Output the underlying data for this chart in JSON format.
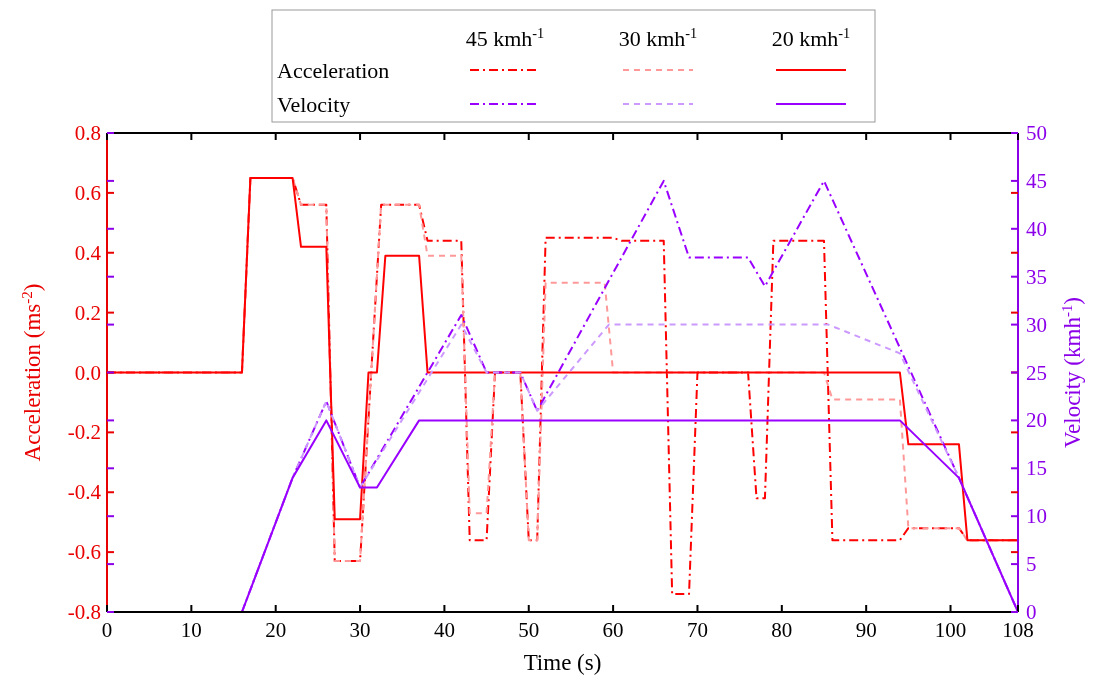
{
  "chart_data": {
    "type": "line",
    "xlabel": "Time (s)",
    "ylabel": "Acceleration (ms$^{-2}$)",
    "y2label": "Velocity (kmh$^{-1}$)",
    "xlim": [
      0,
      108
    ],
    "xticks": [
      0,
      10,
      20,
      30,
      40,
      50,
      60,
      70,
      80,
      90,
      100,
      108
    ],
    "ylim": [
      -0.8,
      0.8
    ],
    "yticks": [
      -0.8,
      -0.6,
      -0.4,
      -0.2,
      {
        "value": 0,
        "label": "0.0"
      },
      0.2,
      0.4,
      0.6,
      0.8
    ],
    "y2lim": [
      0,
      50
    ],
    "y2ticks": [
      0,
      5,
      10,
      15,
      20,
      25,
      30,
      35,
      40,
      45,
      50
    ],
    "grid": false,
    "annotations": [
      "45 kmh$^{-1}$",
      "30 kmh$^{-1}$",
      "20 kmh$^{-1}$",
      "Acceleration",
      "Velocity"
    ],
    "series": [
      {
        "color": "#ff0000",
        "line_style": "dashdot",
        "x": [
          0,
          16,
          17,
          22,
          23,
          26,
          27,
          30,
          32.5,
          37,
          38,
          42,
          43,
          45,
          46,
          49,
          50,
          51,
          52,
          60,
          61,
          66,
          67,
          69,
          70,
          76,
          77,
          78,
          79,
          85,
          86,
          94,
          95,
          101,
          102,
          108
        ],
        "values": [
          0,
          0,
          0.65,
          0.65,
          0.56,
          0.56,
          -0.63,
          -0.63,
          0.56,
          0.56,
          0.44,
          0.44,
          -0.56,
          -0.56,
          0,
          0,
          -0.56,
          -0.56,
          0.45,
          0.45,
          0.44,
          0.44,
          -0.74,
          -0.74,
          0,
          0,
          -0.42,
          -0.42,
          0.44,
          0.44,
          -0.56,
          -0.56,
          -0.52,
          -0.52,
          -0.56,
          -0.56
        ]
      },
      {
        "color": "#ff9999",
        "line_style": "dashed",
        "x": [
          0,
          16,
          17,
          22,
          23,
          26,
          27,
          30,
          32.5,
          37,
          38,
          42,
          43,
          45,
          46,
          49,
          50,
          51,
          52,
          59,
          60,
          85,
          86,
          94,
          95,
          101,
          102,
          108
        ],
        "values": [
          0,
          0,
          0.65,
          0.65,
          0.56,
          0.56,
          -0.63,
          -0.63,
          0.56,
          0.56,
          0.39,
          0.39,
          -0.47,
          -0.47,
          0,
          0,
          -0.56,
          -0.56,
          0.3,
          0.3,
          0,
          0,
          -0.09,
          -0.09,
          -0.52,
          -0.52,
          -0.56,
          -0.56
        ]
      },
      {
        "color": "#ff0000",
        "line_style": "solid",
        "x": [
          0,
          16,
          17,
          22,
          23,
          26,
          27,
          30,
          31,
          32,
          33,
          37,
          38,
          94,
          95,
          101,
          102,
          108
        ],
        "values": [
          0,
          0,
          0.65,
          0.65,
          0.42,
          0.42,
          -0.49,
          -0.49,
          0,
          0,
          0.39,
          0.39,
          0,
          0,
          -0.24,
          -0.24,
          -0.56,
          -0.56
        ]
      },
      {
        "color": "#9900ff",
        "line_style": "dashdot",
        "axis": "y2",
        "x": [
          16,
          22,
          26,
          30,
          38,
          42,
          45,
          49,
          51,
          66,
          69,
          76,
          78,
          85,
          101,
          108
        ],
        "values": [
          0,
          14,
          22,
          13,
          25,
          31,
          25,
          25,
          21,
          45,
          37,
          37,
          34,
          45,
          14,
          0
        ]
      },
      {
        "color": "#cc99ff",
        "line_style": "dashed",
        "axis": "y2",
        "x": [
          16,
          22,
          26,
          30,
          42,
          45,
          49,
          51,
          59.5,
          85.5,
          94,
          101,
          108
        ],
        "values": [
          0,
          14,
          22,
          13,
          30,
          25,
          25,
          21,
          30,
          30,
          27,
          14,
          0
        ]
      },
      {
        "color": "#9900ff",
        "line_style": "solid",
        "axis": "y2",
        "x": [
          16,
          22,
          26,
          30,
          32,
          37,
          94,
          101,
          108
        ],
        "values": [
          0,
          14,
          20,
          13,
          13,
          20,
          20,
          14,
          0
        ]
      }
    ]
  }
}
